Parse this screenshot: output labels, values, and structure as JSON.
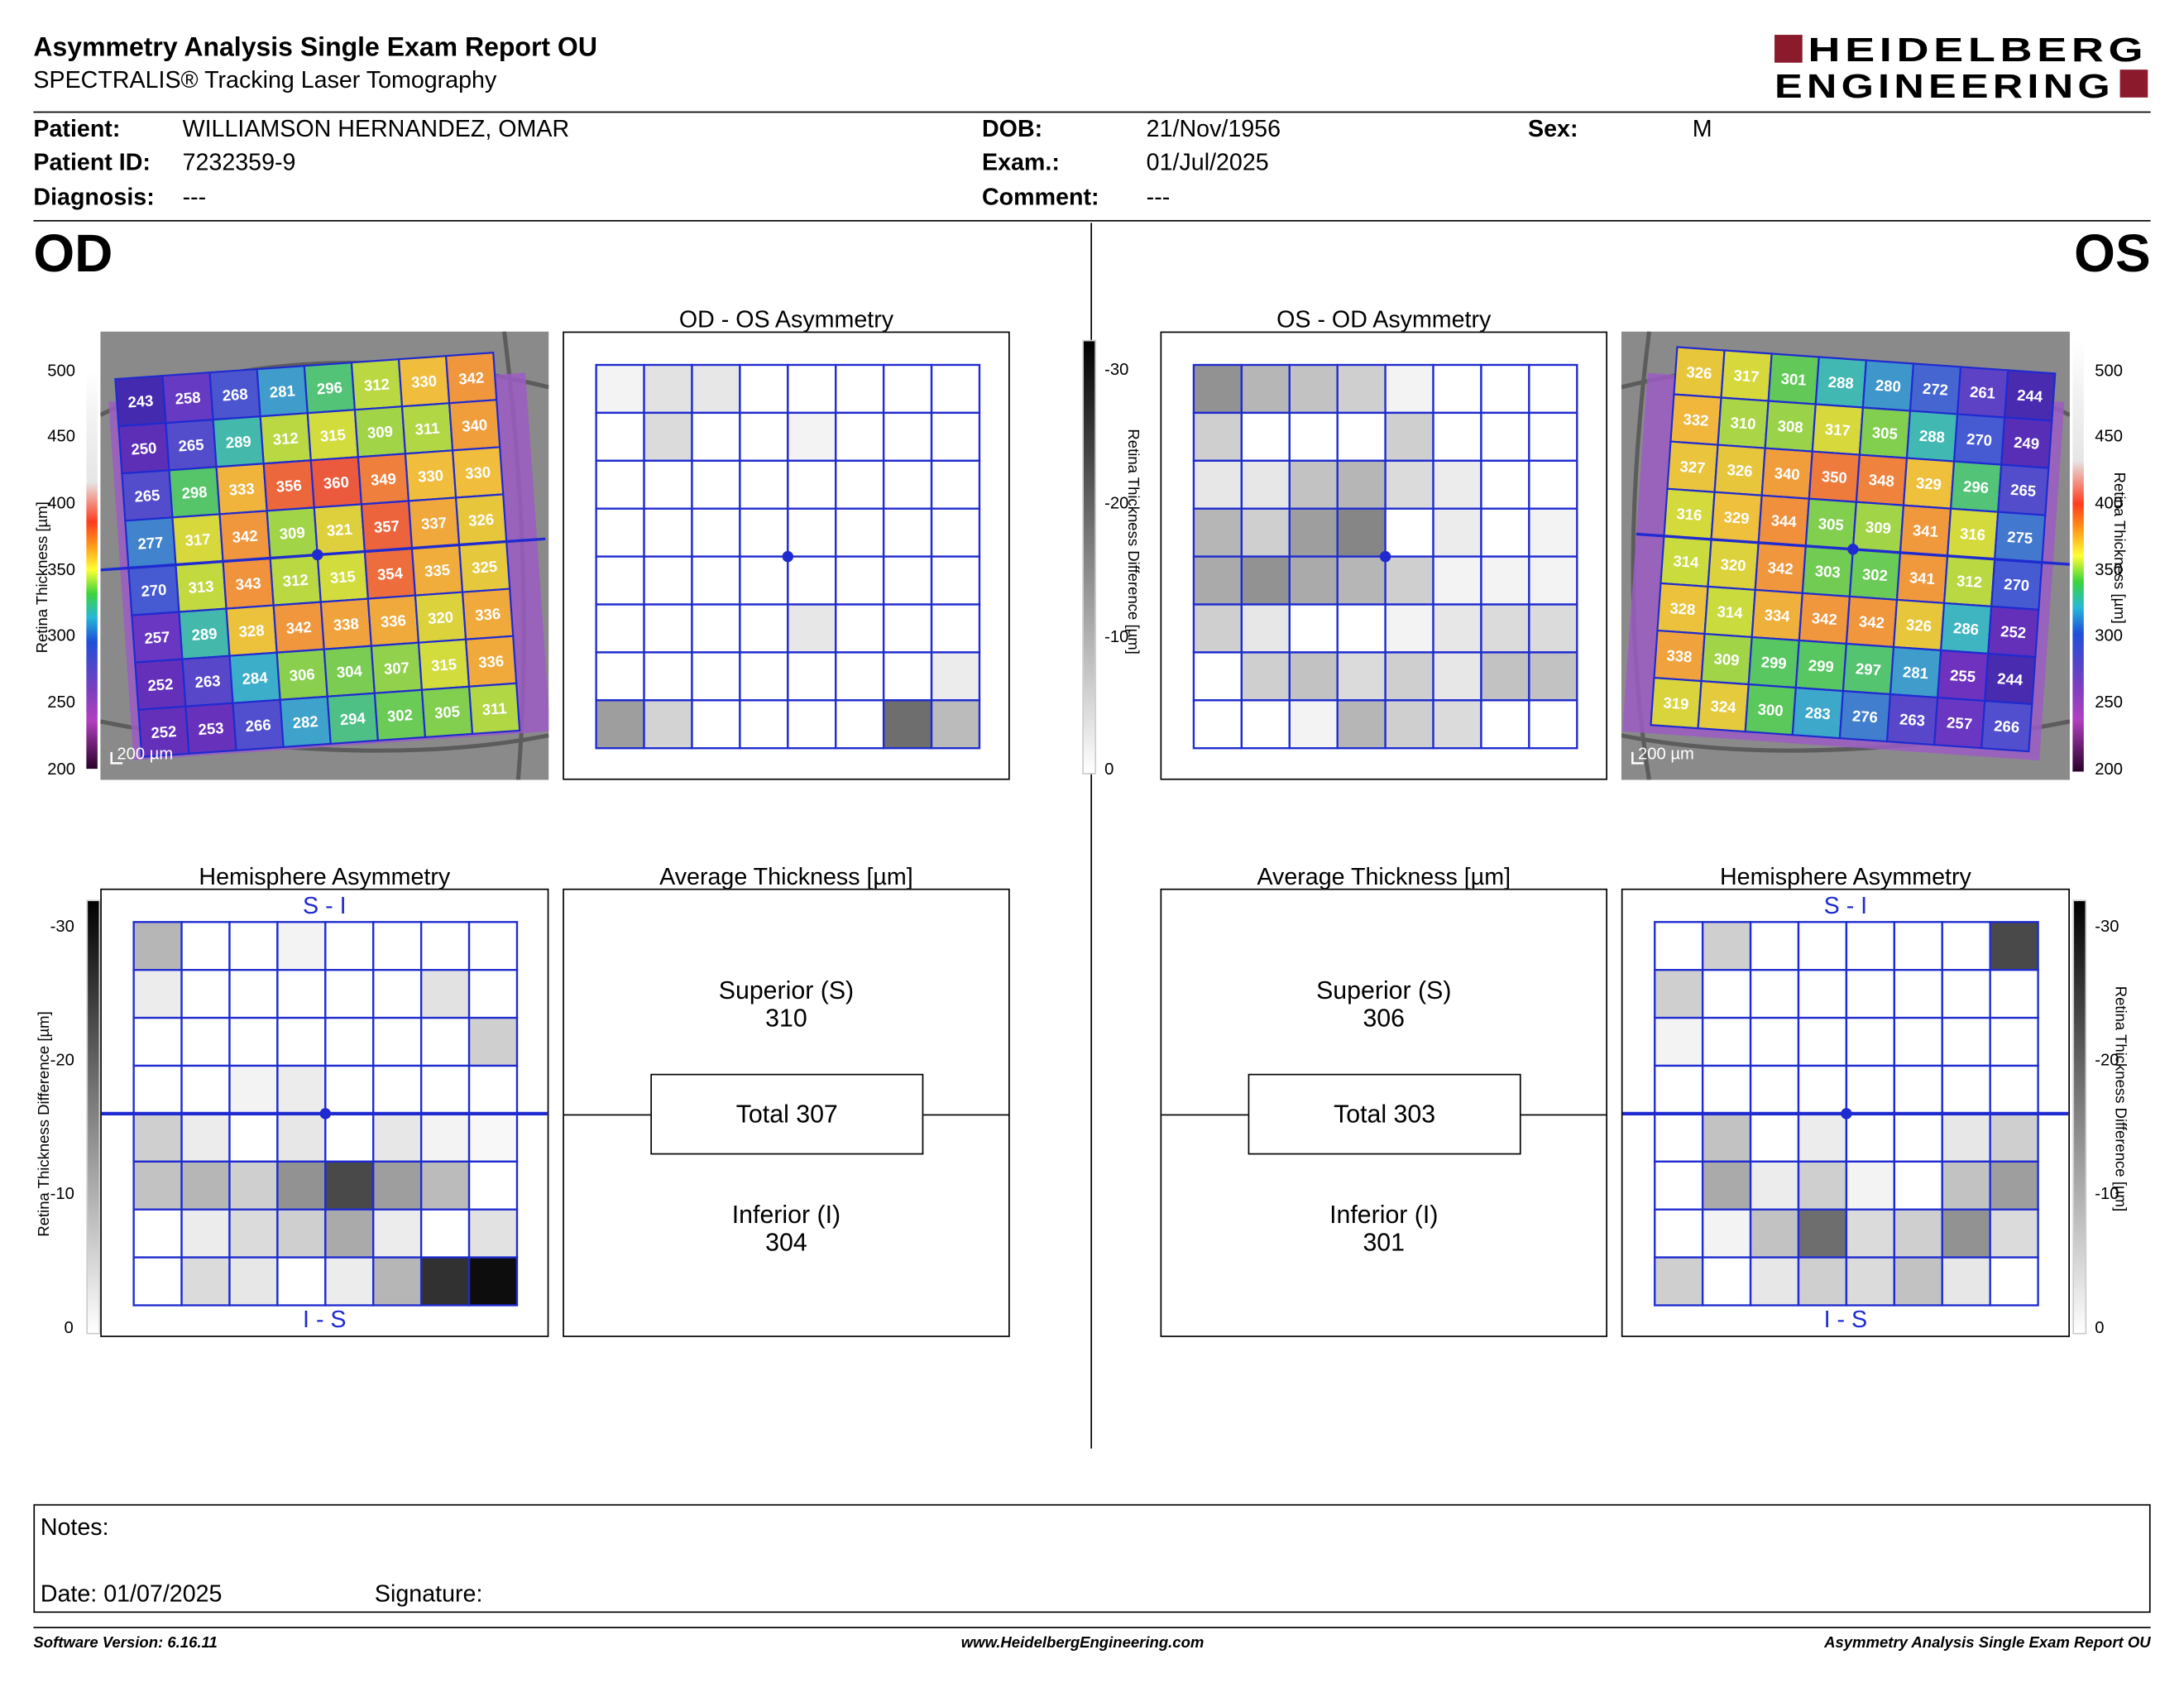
{
  "header": {
    "title": "Asymmetry Analysis Single Exam Report OU",
    "subtitle": "SPECTRALIS® Tracking Laser Tomography",
    "logo": {
      "line1": "HEIDELBERG",
      "line2": "ENGINEERING",
      "color": "#8a1a2c"
    }
  },
  "patient": {
    "patient_label": "Patient:",
    "patient_value": "WILLIAMSON HERNANDEZ, OMAR",
    "id_label": "Patient ID:",
    "id_value": "7232359-9",
    "diagnosis_label": "Diagnosis:",
    "diagnosis_value": "---",
    "dob_label": "DOB:",
    "dob_value": "21/Nov/1956",
    "exam_label": "Exam.:",
    "exam_value": "01/Jul/2025",
    "comment_label": "Comment:",
    "comment_value": "---",
    "sex_label": "Sex:",
    "sex_value": "M"
  },
  "od": {
    "label": "OD",
    "map_scale": "200 µm",
    "thickness_grid": [
      [
        243,
        258,
        268,
        281,
        296,
        312,
        330,
        342
      ],
      [
        250,
        265,
        289,
        312,
        315,
        309,
        311,
        340
      ],
      [
        265,
        298,
        333,
        356,
        360,
        349,
        330,
        330
      ],
      [
        277,
        317,
        342,
        309,
        321,
        357,
        337,
        326
      ],
      [
        270,
        313,
        343,
        312,
        315,
        354,
        335,
        325
      ],
      [
        257,
        289,
        328,
        342,
        338,
        336,
        320,
        336
      ],
      [
        252,
        263,
        284,
        306,
        304,
        307,
        315,
        336
      ],
      [
        252,
        253,
        266,
        282,
        294,
        302,
        305,
        311
      ]
    ],
    "asym_title": "OD - OS Asymmetry",
    "asym_levels": [
      [
        0.05,
        0.12,
        0.1,
        0,
        0,
        0,
        0,
        0
      ],
      [
        0,
        0.15,
        0,
        0,
        0.05,
        0,
        0,
        0
      ],
      [
        0,
        0,
        0,
        0,
        0,
        0,
        0,
        0
      ],
      [
        0,
        0,
        0,
        0,
        0,
        0,
        0,
        0
      ],
      [
        0,
        0,
        0,
        0,
        0,
        0,
        0,
        0
      ],
      [
        0,
        0,
        0,
        0,
        0.1,
        0,
        0,
        0
      ],
      [
        0,
        0,
        0,
        0,
        0,
        0,
        0,
        0.08
      ],
      [
        0.4,
        0.18,
        0,
        0,
        0,
        0,
        0.6,
        0.28
      ]
    ],
    "hemi_title": "Hemisphere Asymmetry",
    "hemi_top": "S - I",
    "hemi_bottom": "I - S",
    "hemi_levels": [
      [
        0.3,
        0,
        0,
        0.05,
        0,
        0,
        0,
        0
      ],
      [
        0.08,
        0,
        0,
        0,
        0,
        0,
        0.12,
        0
      ],
      [
        0,
        0,
        0,
        0,
        0,
        0,
        0,
        0.2
      ],
      [
        0,
        0,
        0.05,
        0.08,
        0,
        0,
        0,
        0
      ],
      [
        0.2,
        0.08,
        0,
        0.1,
        0,
        0.1,
        0.05,
        0.03
      ],
      [
        0.25,
        0.3,
        0.2,
        0.45,
        0.75,
        0.4,
        0.28,
        0
      ],
      [
        0,
        0.08,
        0.15,
        0.2,
        0.35,
        0.08,
        0,
        0.12
      ],
      [
        0,
        0.15,
        0.1,
        0,
        0.08,
        0.3,
        0.85,
        1.0
      ]
    ],
    "avg_title": "Average Thickness [µm]",
    "superior_label": "Superior (S)",
    "superior_value": "310",
    "total_label": "Total 307",
    "inferior_label": "Inferior (I)",
    "inferior_value": "304"
  },
  "os": {
    "label": "OS",
    "map_scale": "200 µm",
    "thickness_grid": [
      [
        326,
        317,
        301,
        288,
        280,
        272,
        261,
        244
      ],
      [
        332,
        310,
        308,
        317,
        305,
        288,
        270,
        249
      ],
      [
        327,
        326,
        340,
        350,
        348,
        329,
        296,
        265
      ],
      [
        316,
        329,
        344,
        305,
        309,
        341,
        316,
        275
      ],
      [
        314,
        320,
        342,
        303,
        302,
        341,
        312,
        270
      ],
      [
        328,
        314,
        334,
        342,
        342,
        326,
        286,
        252
      ],
      [
        338,
        309,
        299,
        299,
        297,
        281,
        255,
        244
      ],
      [
        319,
        324,
        300,
        283,
        276,
        263,
        257,
        266
      ]
    ],
    "asym_title": "OS - OD Asymmetry",
    "asym_levels": [
      [
        0.45,
        0.3,
        0.25,
        0.2,
        0.05,
        0,
        0,
        0
      ],
      [
        0.2,
        0,
        0,
        0,
        0.2,
        0,
        0,
        0
      ],
      [
        0.1,
        0.1,
        0.25,
        0.3,
        0.15,
        0.08,
        0,
        0
      ],
      [
        0.3,
        0.2,
        0.4,
        0.5,
        0,
        0.08,
        0,
        0.05
      ],
      [
        0.35,
        0.45,
        0.35,
        0.3,
        0.2,
        0.05,
        0.05,
        0.05
      ],
      [
        0.2,
        0.1,
        0,
        0,
        0.05,
        0.1,
        0.15,
        0.15
      ],
      [
        0,
        0.2,
        0.25,
        0.15,
        0.2,
        0.1,
        0.25,
        0.25
      ],
      [
        0,
        0,
        0.05,
        0.3,
        0.2,
        0.15,
        0,
        0
      ]
    ],
    "hemi_title": "Hemisphere Asymmetry",
    "hemi_top": "S - I",
    "hemi_bottom": "I - S",
    "hemi_levels": [
      [
        0,
        0.2,
        0,
        0,
        0,
        0,
        0,
        0.75
      ],
      [
        0.2,
        0,
        0,
        0,
        0,
        0,
        0,
        0
      ],
      [
        0.05,
        0,
        0,
        0,
        0,
        0,
        0,
        0
      ],
      [
        0,
        0,
        0,
        0,
        0,
        0,
        0,
        0
      ],
      [
        0,
        0.25,
        0,
        0.08,
        0,
        0,
        0.1,
        0.2
      ],
      [
        0,
        0.35,
        0.08,
        0.2,
        0.05,
        0,
        0.25,
        0.4
      ],
      [
        0,
        0.05,
        0.25,
        0.6,
        0.15,
        0.2,
        0.45,
        0.15
      ],
      [
        0.2,
        0,
        0.1,
        0.2,
        0.15,
        0.25,
        0.1,
        0
      ]
    ],
    "avg_title": "Average Thickness [µm]",
    "superior_label": "Superior (S)",
    "superior_value": "306",
    "total_label": "Total 303",
    "inferior_label": "Inferior (I)",
    "inferior_value": "301"
  },
  "scales": {
    "thickness_ticks": [
      "500",
      "450",
      "400",
      "350",
      "300",
      "250",
      "200"
    ],
    "thickness_axis_label": "Retina Thickness [µm]",
    "diff_ticks": [
      "-30",
      "-20",
      "-10",
      "0"
    ],
    "diff_axis_label": "Retina Thickness Difference [µm]"
  },
  "notes": {
    "notes_label": "Notes:",
    "date_label": "Date: 01/07/2025",
    "signature_label": "Signature:"
  },
  "footer": {
    "software": "Software Version: 6.16.11",
    "website": "www.HeidelbergEngineering.com",
    "report": "Asymmetry Analysis Single Exam Report OU"
  }
}
